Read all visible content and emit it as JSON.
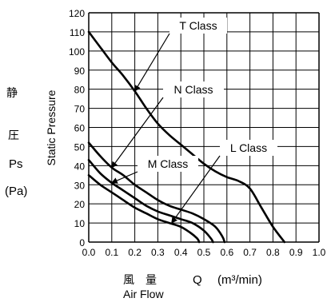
{
  "chart_data": {
    "type": "line",
    "title": "",
    "xlabel_cjk": "風　量",
    "xlabel_symbol": "Q",
    "xlabel_unit": "(m³/min)",
    "xlabel_en": "Air Flow",
    "ylabel": "Static Pressure",
    "ylabel_cjk": "静",
    "ylabel_cjk2": "圧",
    "ylabel_symbol": "Ps",
    "ylabel_unit": "(Pa)",
    "xlim": [
      0,
      1.0
    ],
    "ylim": [
      0,
      120
    ],
    "x_ticks": [
      "0.0",
      "0.1",
      "0.2",
      "0.3",
      "0.4",
      "0.5",
      "0.6",
      "0.7",
      "0.8",
      "0.9",
      "1.0"
    ],
    "y_ticks": [
      "0",
      "10",
      "20",
      "30",
      "40",
      "50",
      "60",
      "70",
      "80",
      "90",
      "100",
      "110",
      "120"
    ],
    "grid": true,
    "series": [
      {
        "name": "T Class",
        "points": [
          [
            0,
            110
          ],
          [
            0.05,
            102
          ],
          [
            0.1,
            94
          ],
          [
            0.15,
            87
          ],
          [
            0.2,
            79
          ],
          [
            0.25,
            70
          ],
          [
            0.3,
            62
          ],
          [
            0.35,
            56
          ],
          [
            0.4,
            51
          ],
          [
            0.45,
            46
          ],
          [
            0.5,
            41
          ],
          [
            0.55,
            37
          ],
          [
            0.6,
            34
          ],
          [
            0.65,
            32
          ],
          [
            0.7,
            28
          ],
          [
            0.75,
            18
          ],
          [
            0.8,
            8
          ],
          [
            0.85,
            0
          ]
        ]
      },
      {
        "name": "N Class",
        "points": [
          [
            0,
            52
          ],
          [
            0.05,
            45
          ],
          [
            0.1,
            39
          ],
          [
            0.15,
            35
          ],
          [
            0.2,
            30
          ],
          [
            0.25,
            26
          ],
          [
            0.3,
            22
          ],
          [
            0.35,
            19
          ],
          [
            0.4,
            17
          ],
          [
            0.45,
            15
          ],
          [
            0.5,
            12
          ],
          [
            0.55,
            8
          ],
          [
            0.58,
            3
          ],
          [
            0.59,
            0
          ]
        ]
      },
      {
        "name": "M Class",
        "points": [
          [
            0,
            43
          ],
          [
            0.05,
            36
          ],
          [
            0.1,
            31
          ],
          [
            0.15,
            27
          ],
          [
            0.2,
            23
          ],
          [
            0.25,
            19
          ],
          [
            0.3,
            16
          ],
          [
            0.35,
            14
          ],
          [
            0.4,
            12
          ],
          [
            0.45,
            10
          ],
          [
            0.5,
            6
          ],
          [
            0.53,
            2
          ],
          [
            0.54,
            0
          ]
        ]
      },
      {
        "name": "L Class",
        "points": [
          [
            0,
            35
          ],
          [
            0.05,
            30
          ],
          [
            0.1,
            26
          ],
          [
            0.15,
            22
          ],
          [
            0.2,
            18
          ],
          [
            0.25,
            15
          ],
          [
            0.3,
            12
          ],
          [
            0.35,
            10
          ],
          [
            0.4,
            8
          ],
          [
            0.44,
            5
          ],
          [
            0.47,
            2
          ],
          [
            0.48,
            0
          ]
        ]
      }
    ],
    "labels": [
      "T Class",
      "N Class",
      "M Class",
      "L Class"
    ]
  }
}
